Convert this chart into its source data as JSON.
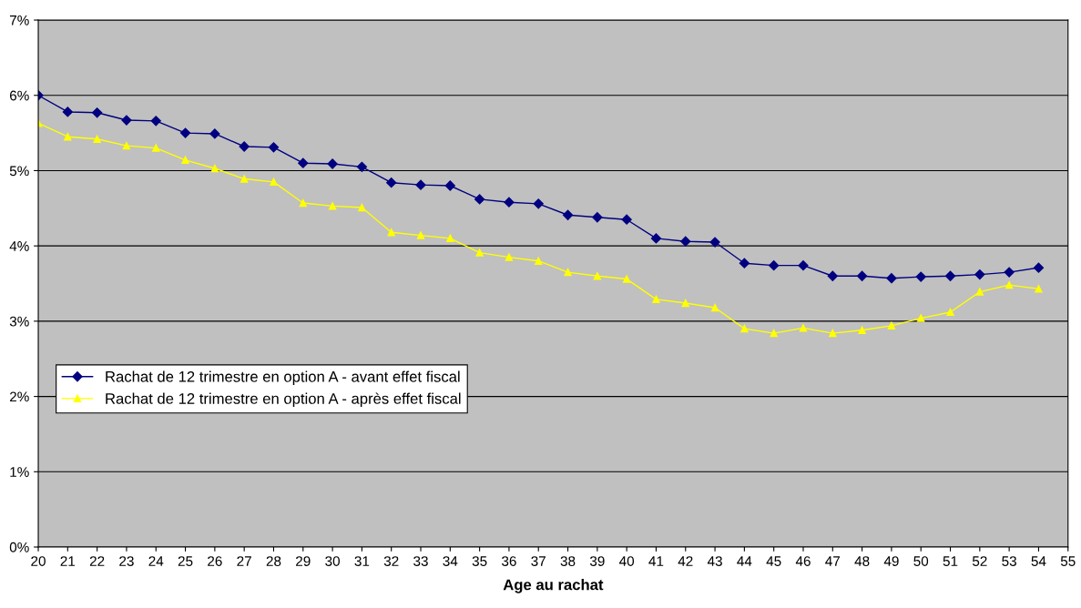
{
  "chart_data": {
    "type": "line",
    "xlabel": "Age au rachat",
    "x": [
      20,
      21,
      22,
      23,
      24,
      25,
      26,
      27,
      28,
      29,
      30,
      31,
      32,
      33,
      34,
      35,
      36,
      37,
      38,
      39,
      40,
      41,
      42,
      43,
      44,
      45,
      46,
      47,
      48,
      49,
      50,
      51,
      52,
      53,
      54
    ],
    "series": [
      {
        "name": "Rachat de 12 trimestre en option A - avant effet fiscal",
        "color": "#000080",
        "marker": "diamond",
        "values": [
          6.0,
          5.78,
          5.77,
          5.67,
          5.66,
          5.5,
          5.49,
          5.32,
          5.31,
          5.1,
          5.09,
          5.05,
          4.84,
          4.81,
          4.8,
          4.62,
          4.58,
          4.56,
          4.41,
          4.38,
          4.35,
          4.1,
          4.06,
          4.05,
          3.77,
          3.74,
          3.74,
          3.6,
          3.6,
          3.57,
          3.59,
          3.6,
          3.62,
          3.65,
          3.71
        ]
      },
      {
        "name": "Rachat de 12 trimestre en option A - après effet fiscal",
        "color": "#ffff00",
        "marker": "triangle",
        "values": [
          5.63,
          5.45,
          5.42,
          5.33,
          5.3,
          5.14,
          5.03,
          4.89,
          4.85,
          4.57,
          4.53,
          4.51,
          4.18,
          4.14,
          4.1,
          3.91,
          3.85,
          3.8,
          3.65,
          3.6,
          3.56,
          3.29,
          3.24,
          3.18,
          2.9,
          2.84,
          2.91,
          2.84,
          2.88,
          2.94,
          3.04,
          3.12,
          3.39,
          3.48,
          3.43
        ]
      }
    ],
    "xlim": [
      20,
      55
    ],
    "xticks": [
      20,
      21,
      22,
      23,
      24,
      25,
      26,
      27,
      28,
      29,
      30,
      31,
      32,
      33,
      34,
      35,
      36,
      37,
      38,
      39,
      40,
      41,
      42,
      43,
      44,
      45,
      46,
      47,
      48,
      49,
      50,
      51,
      52,
      53,
      54,
      55
    ],
    "ylim": [
      0,
      7
    ],
    "yticks": [
      {
        "value": 0,
        "label": "0%"
      },
      {
        "value": 1,
        "label": "1%"
      },
      {
        "value": 2,
        "label": "2%"
      },
      {
        "value": 3,
        "label": "3%"
      },
      {
        "value": 4,
        "label": "4%"
      },
      {
        "value": 5,
        "label": "5%"
      },
      {
        "value": 6,
        "label": "6%"
      },
      {
        "value": 7,
        "label": "7%"
      }
    ],
    "grid": "y",
    "legend": "left",
    "line_style": "solid"
  }
}
